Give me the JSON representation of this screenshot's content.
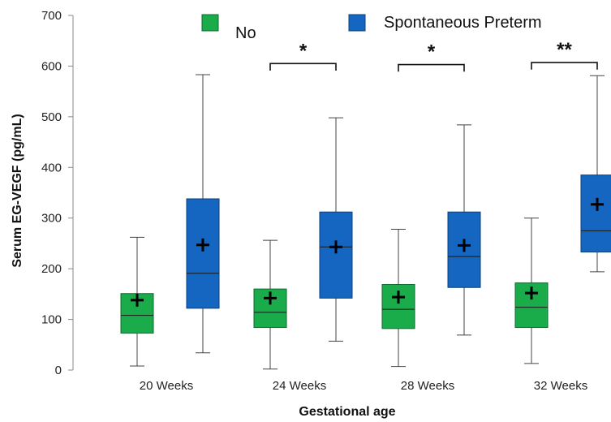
{
  "chart_data": {
    "type": "box",
    "xlabel": "Gestational age",
    "ylabel": "Serum EG-VEGF (pg/mL)",
    "ylim": [
      0,
      700
    ],
    "yticks": [
      0,
      100,
      200,
      300,
      400,
      500,
      600,
      700
    ],
    "grid": false,
    "legend_position": "top",
    "categories": [
      "20 Weeks",
      "24 Weeks",
      "28 Weeks",
      "32 Weeks"
    ],
    "series": [
      {
        "name": "No",
        "color": "#1aab4b",
        "stroke": "#0f6a2e",
        "boxes": [
          {
            "min": 8,
            "q1": 73,
            "median": 108,
            "q3": 151,
            "max": 262,
            "mean": 138
          },
          {
            "min": 2,
            "q1": 84,
            "median": 114,
            "q3": 160,
            "max": 256,
            "mean": 142
          },
          {
            "min": 7,
            "q1": 82,
            "median": 120,
            "q3": 169,
            "max": 278,
            "mean": 144
          },
          {
            "min": 13,
            "q1": 84,
            "median": 124,
            "q3": 172,
            "max": 300,
            "mean": 152
          }
        ]
      },
      {
        "name": "Spontaneous Preterm",
        "color": "#1466c0",
        "stroke": "#0c3f7a",
        "boxes": [
          {
            "min": 34,
            "q1": 122,
            "median": 191,
            "q3": 338,
            "max": 583,
            "mean": 247
          },
          {
            "min": 57,
            "q1": 142,
            "median": 243,
            "q3": 312,
            "max": 498,
            "mean": 243
          },
          {
            "min": 69,
            "q1": 163,
            "median": 224,
            "q3": 312,
            "max": 484,
            "mean": 246
          },
          {
            "min": 194,
            "q1": 233,
            "median": 275,
            "q3": 385,
            "max": 581,
            "mean": 327
          }
        ]
      }
    ],
    "significance": [
      {
        "category": "24 Weeks",
        "label": "*",
        "y": 605
      },
      {
        "category": "28 Weeks",
        "label": "*",
        "y": 603
      },
      {
        "category": "32 Weeks",
        "label": "**",
        "y": 607
      }
    ]
  }
}
